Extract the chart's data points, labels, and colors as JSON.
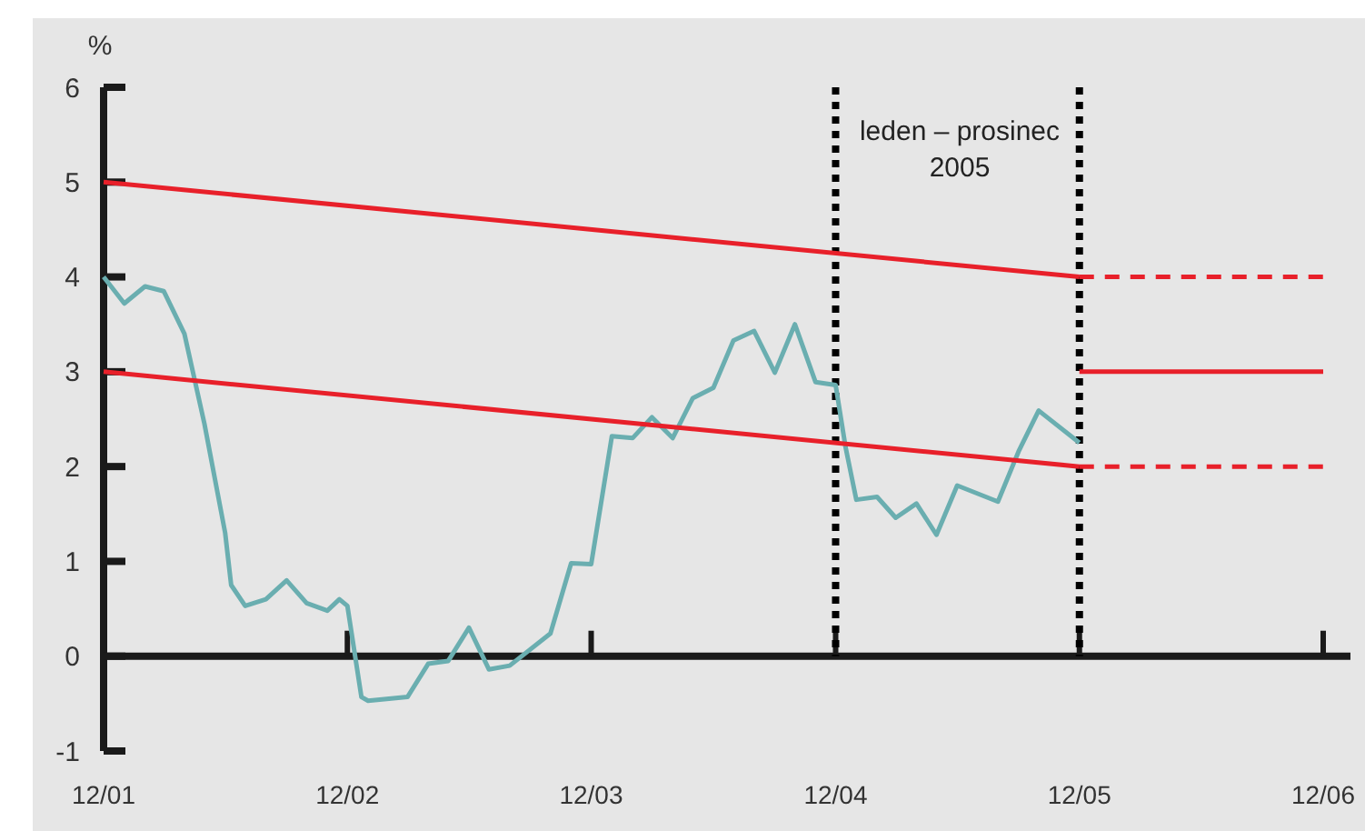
{
  "chart_data": {
    "type": "line",
    "ylabel": "%",
    "xlim": [
      "2001-12",
      "2006-12"
    ],
    "ylim": [
      -1,
      6
    ],
    "xticks": [
      {
        "value": "2001-12",
        "label": "12/01"
      },
      {
        "value": "2002-12",
        "label": "12/02"
      },
      {
        "value": "2003-12",
        "label": "12/03"
      },
      {
        "value": "2004-12",
        "label": "12/04"
      },
      {
        "value": "2005-12",
        "label": "12/05"
      },
      {
        "value": "2006-12",
        "label": "12/06"
      }
    ],
    "yticks": [
      -1,
      0,
      1,
      2,
      3,
      4,
      5,
      6
    ],
    "grid": false,
    "series": [
      {
        "color": "#6aaeb0",
        "x": [
          "2001-12-01",
          "2002-01-01",
          "2002-02-01",
          "2002-03-01",
          "2002-04-01",
          "2002-05-01",
          "2002-06-01",
          "2002-06-10",
          "2002-07-01",
          "2002-08-01",
          "2002-09-01",
          "2002-10-01",
          "2002-11-01",
          "2002-11-19",
          "2002-12-01",
          "2002-12-22",
          "2003-01-01",
          "2003-03-01",
          "2003-04-01",
          "2003-05-01",
          "2003-06-01",
          "2003-07-01",
          "2003-08-01",
          "2003-10-01",
          "2003-11-01",
          "2003-12-01",
          "2004-01-01",
          "2004-02-01",
          "2004-03-01",
          "2004-04-01",
          "2004-05-01",
          "2004-06-01",
          "2004-07-01",
          "2004-08-01",
          "2004-09-01",
          "2004-10-01",
          "2004-11-01",
          "2004-12-01",
          "2004-12-16",
          "2005-01-01",
          "2005-02-01",
          "2005-03-01",
          "2005-04-01",
          "2005-05-01",
          "2005-06-01",
          "2005-08-01",
          "2005-09-01",
          "2005-10-01",
          "2005-12-01"
        ],
        "values": [
          4.0,
          3.72,
          3.9,
          3.85,
          3.4,
          2.45,
          1.3,
          0.75,
          0.53,
          0.6,
          0.8,
          0.56,
          0.48,
          0.6,
          0.53,
          -0.43,
          -0.47,
          -0.43,
          -0.08,
          -0.05,
          0.3,
          -0.14,
          -0.1,
          0.24,
          0.98,
          0.97,
          2.32,
          2.3,
          2.52,
          2.3,
          2.72,
          2.83,
          3.33,
          3.43,
          2.99,
          3.5,
          2.89,
          2.86,
          2.2,
          1.65,
          1.68,
          1.46,
          1.61,
          1.28,
          1.8,
          1.63,
          2.16,
          2.59,
          2.25
        ]
      },
      {
        "color": "#e8202a",
        "x": [
          "2001-12",
          "2005-12"
        ],
        "values": [
          5.0,
          4.0
        ],
        "line_style": "solid"
      },
      {
        "color": "#e8202a",
        "x": [
          "2005-12",
          "2006-12"
        ],
        "values": [
          4.0,
          4.0
        ],
        "line_style": "dashed"
      },
      {
        "color": "#e8202a",
        "x": [
          "2005-12",
          "2006-12"
        ],
        "values": [
          3.0,
          3.0
        ],
        "line_style": "solid"
      },
      {
        "color": "#e8202a",
        "x": [
          "2001-12",
          "2005-12"
        ],
        "values": [
          3.0,
          2.0
        ],
        "line_style": "solid"
      },
      {
        "color": "#e8202a",
        "x": [
          "2005-12",
          "2006-12"
        ],
        "values": [
          2.0,
          2.0
        ],
        "line_style": "dashed"
      }
    ],
    "ref_lines": [
      {
        "axis": "x",
        "value": "2004-12",
        "color": "#000000",
        "line_style": "dotted"
      },
      {
        "axis": "x",
        "value": "2005-12",
        "color": "#000000",
        "line_style": "dotted"
      }
    ],
    "annotations": [
      "leden – prosinec\n2005"
    ]
  }
}
